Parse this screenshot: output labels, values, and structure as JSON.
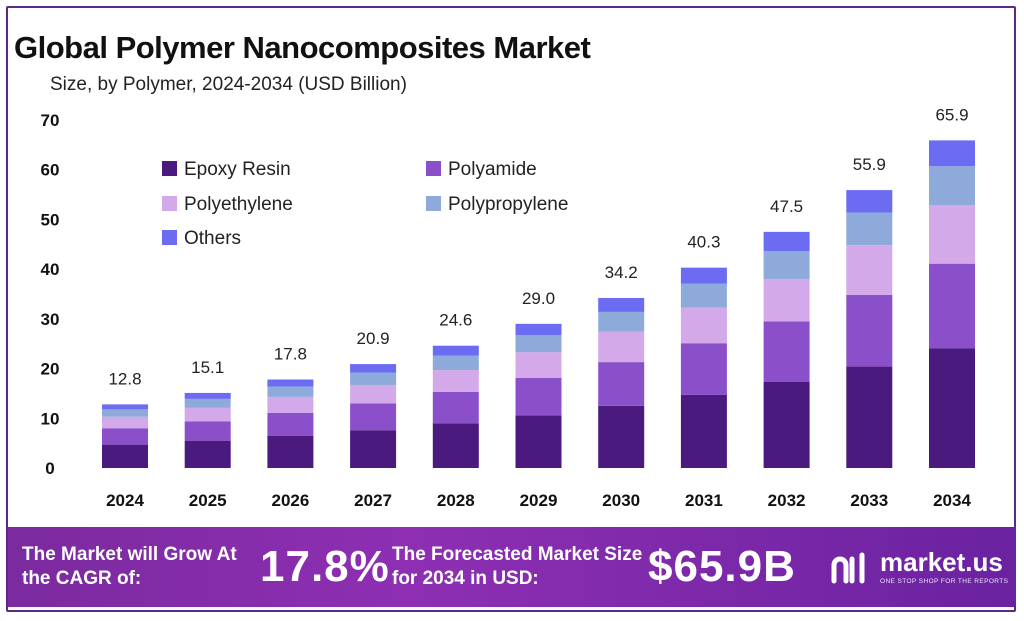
{
  "header": {
    "title": "Global Polymer Nanocomposites Market",
    "subtitle": "Size, by Polymer, 2024-2034 (USD Billion)"
  },
  "chart_data": {
    "type": "bar",
    "stacked": true,
    "categories": [
      "2024",
      "2025",
      "2026",
      "2027",
      "2028",
      "2029",
      "2030",
      "2031",
      "2032",
      "2033",
      "2034"
    ],
    "totals": [
      12.8,
      15.1,
      17.8,
      20.9,
      24.6,
      29.0,
      34.2,
      40.3,
      47.5,
      55.9,
      65.9
    ],
    "total_labels": [
      "12.8",
      "15.1",
      "17.8",
      "20.9",
      "24.6",
      "29.0",
      "34.2",
      "40.3",
      "47.5",
      "55.9",
      "65.9"
    ],
    "series": [
      {
        "name": "Epoxy Resin",
        "color": "#4b1a7e",
        "values": [
          4.7,
          5.5,
          6.5,
          7.6,
          9.0,
          10.6,
          12.5,
          14.7,
          17.3,
          20.4,
          24.1
        ]
      },
      {
        "name": "Polyamide",
        "color": "#8b4fc9",
        "values": [
          3.3,
          3.9,
          4.6,
          5.4,
          6.3,
          7.5,
          8.8,
          10.4,
          12.2,
          14.4,
          17.0
        ]
      },
      {
        "name": "Polyethylene",
        "color": "#d3a9ea",
        "values": [
          2.3,
          2.7,
          3.2,
          3.7,
          4.4,
          5.2,
          6.1,
          7.2,
          8.5,
          10.0,
          11.8
        ]
      },
      {
        "name": "Polypropylene",
        "color": "#8eaada",
        "values": [
          1.5,
          1.8,
          2.1,
          2.5,
          2.9,
          3.4,
          4.0,
          4.8,
          5.6,
          6.6,
          7.8
        ]
      },
      {
        "name": "Others",
        "color": "#6b6cf1",
        "values": [
          1.0,
          1.2,
          1.4,
          1.7,
          2.0,
          2.3,
          2.8,
          3.2,
          3.9,
          4.5,
          5.2
        ]
      }
    ],
    "yticks": [
      "0",
      "10",
      "20",
      "30",
      "40",
      "50",
      "60",
      "70"
    ],
    "ylim": [
      0,
      70
    ],
    "grid": false,
    "legend_position": "top-left"
  },
  "footer": {
    "cagr_text": "The Market will Grow At the CAGR of:",
    "cagr_value": "17.8%",
    "forecast_text": "The Forecasted Market Size for 2034 in USD:",
    "forecast_value": "$65.9B",
    "logo_name": "market.us",
    "logo_tagline": "ONE STOP SHOP FOR THE REPORTS"
  }
}
